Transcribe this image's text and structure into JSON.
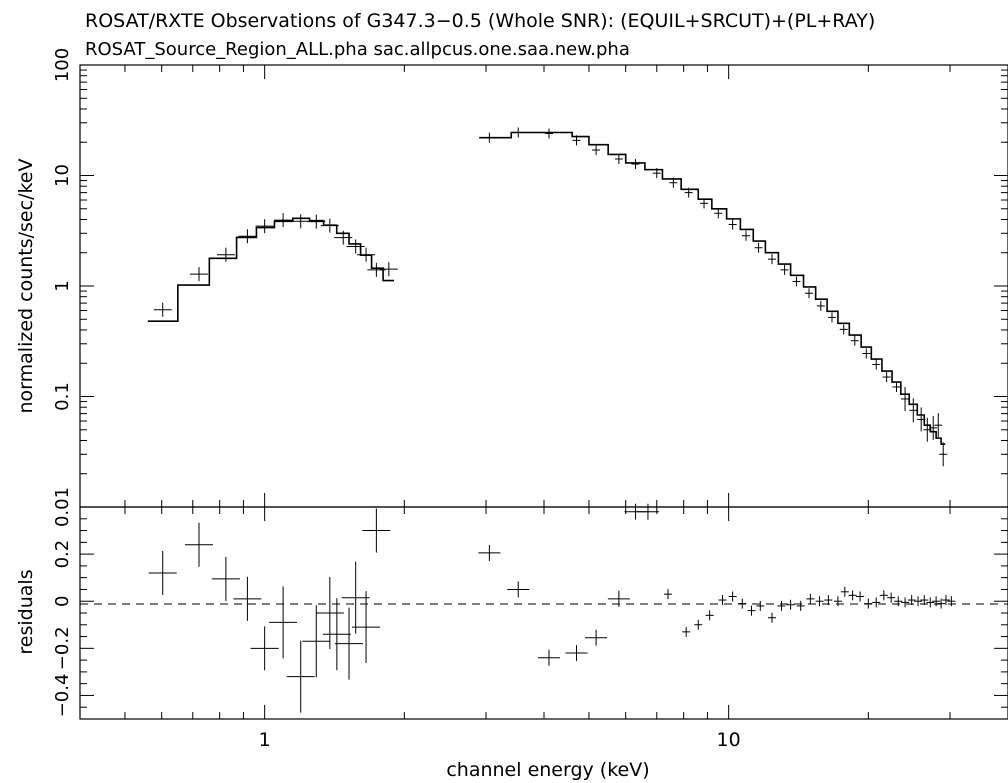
{
  "title": "ROSAT/RXTE Observations of G347.3−0.5 (Whole SNR): (EQUIL+SRCUT)+(PL+RAY)",
  "subtitle": "ROSAT_Source_Region_ALL.pha sac.allpcus.one.saa.new.pha",
  "colors": {
    "ink": "#000000",
    "background": "#ffffff"
  },
  "chart_data": [
    {
      "type": "scatter",
      "panel": "spectrum",
      "xlabel": "channel energy (keV)",
      "ylabel": "normalized counts/sec/keV",
      "xscale": "log",
      "yscale": "log",
      "xlim": [
        0.4,
        40
      ],
      "ylim": [
        0.01,
        100
      ],
      "yticks": [
        0.01,
        0.1,
        1,
        10,
        100
      ],
      "yticklabels": [
        "0.01",
        "0.1",
        "1",
        "10",
        "100"
      ],
      "series": [
        {
          "data": [
            [
              0.603,
              0.61
            ],
            [
              0.722,
              1.28
            ],
            [
              0.825,
              1.92
            ],
            [
              0.918,
              2.82
            ],
            [
              1.0,
              3.48
            ],
            [
              1.096,
              3.95
            ],
            [
              1.196,
              3.85
            ],
            [
              1.292,
              3.82
            ],
            [
              1.382,
              3.52
            ],
            [
              1.477,
              2.74
            ],
            [
              1.571,
              2.28
            ],
            [
              1.654,
              1.92
            ],
            [
              1.741,
              1.4
            ],
            [
              1.852,
              1.42
            ],
            [
              3.05,
              22.0
            ],
            [
              3.52,
              24.5
            ],
            [
              4.1,
              24.0
            ],
            [
              4.7,
              20.8
            ],
            [
              5.18,
              17.0
            ],
            [
              5.8,
              14.1
            ],
            [
              6.3,
              12.7
            ],
            [
              7.0,
              10.5
            ],
            [
              7.6,
              8.6
            ],
            [
              8.2,
              7.0
            ],
            [
              8.85,
              5.6
            ],
            [
              9.5,
              4.55
            ],
            [
              10.2,
              3.6
            ],
            [
              10.9,
              2.85
            ],
            [
              11.6,
              2.22
            ],
            [
              12.4,
              1.75
            ],
            [
              13.2,
              1.4
            ],
            [
              14.0,
              1.1
            ],
            [
              14.9,
              0.86
            ],
            [
              15.8,
              0.66
            ],
            [
              16.7,
              0.52
            ],
            [
              17.7,
              0.405
            ],
            [
              18.7,
              0.32
            ],
            [
              19.8,
              0.245
            ],
            [
              20.8,
              0.195
            ],
            [
              21.9,
              0.15
            ],
            [
              23.0,
              0.122
            ],
            [
              24.0,
              0.095
            ],
            [
              25.0,
              0.075
            ],
            [
              26.0,
              0.062
            ],
            [
              26.8,
              0.05
            ],
            [
              27.6,
              0.052
            ],
            [
              28.3,
              0.055
            ],
            [
              29.0,
              0.03
            ]
          ]
        },
        {
          "step": [
            [
              0.56,
              0.48
            ],
            [
              0.65,
              1.02
            ],
            [
              0.76,
              1.78
            ],
            [
              0.87,
              2.75
            ],
            [
              0.96,
              3.38
            ],
            [
              1.05,
              3.85
            ],
            [
              1.15,
              4.1
            ],
            [
              1.25,
              3.9
            ],
            [
              1.34,
              3.55
            ],
            [
              1.43,
              3.0
            ],
            [
              1.52,
              2.4
            ],
            [
              1.61,
              1.9
            ],
            [
              1.7,
              1.45
            ],
            [
              1.8,
              1.12
            ],
            [
              1.9,
              1.12
            ],
            [
              2.9,
              22.0
            ],
            [
              3.4,
              24.5
            ],
            [
              4.6,
              22.5
            ],
            [
              5.0,
              19.0
            ],
            [
              5.5,
              15.5
            ],
            [
              6.0,
              13.0
            ],
            [
              6.6,
              11.3
            ],
            [
              7.2,
              9.3
            ],
            [
              7.9,
              7.5
            ],
            [
              8.6,
              6.1
            ],
            [
              9.2,
              5.0
            ],
            [
              9.9,
              4.05
            ],
            [
              10.6,
              3.25
            ],
            [
              11.3,
              2.55
            ],
            [
              12.0,
              2.0
            ],
            [
              12.8,
              1.58
            ],
            [
              13.6,
              1.25
            ],
            [
              14.5,
              0.98
            ],
            [
              15.4,
              0.76
            ],
            [
              16.3,
              0.59
            ],
            [
              17.2,
              0.46
            ],
            [
              18.2,
              0.36
            ],
            [
              19.3,
              0.28
            ],
            [
              20.3,
              0.218
            ],
            [
              21.4,
              0.17
            ],
            [
              22.5,
              0.135
            ],
            [
              23.5,
              0.105
            ],
            [
              24.5,
              0.085
            ],
            [
              25.5,
              0.068
            ],
            [
              26.4,
              0.055
            ],
            [
              27.2,
              0.048
            ],
            [
              28.0,
              0.042
            ],
            [
              28.7,
              0.037
            ],
            [
              29.3,
              0.037
            ]
          ]
        }
      ]
    },
    {
      "type": "scatter",
      "panel": "residuals",
      "xlabel": "channel energy (keV)",
      "ylabel": "residuals",
      "xscale": "log",
      "xlim": [
        0.4,
        40
      ],
      "ylim": [
        -0.5,
        0.4
      ],
      "yticks": [
        -0.4,
        -0.2,
        0,
        0.2
      ],
      "yticklabels": [
        "−0.4",
        "−0.2",
        "0",
        "0.2"
      ],
      "xticks": [
        1,
        10
      ],
      "xticklabels": [
        "1",
        "10"
      ],
      "zero_line": 0,
      "series": [
        {
          "data": [
            [
              0.603,
              0.12
            ],
            [
              0.722,
              0.24
            ],
            [
              0.825,
              0.095
            ],
            [
              0.918,
              0.01
            ],
            [
              1.0,
              -0.2
            ],
            [
              1.096,
              -0.09
            ],
            [
              1.196,
              -0.32
            ],
            [
              1.292,
              -0.17
            ],
            [
              1.382,
              -0.05
            ],
            [
              1.431,
              -0.14
            ],
            [
              1.52,
              -0.18
            ],
            [
              1.571,
              0.015
            ],
            [
              1.654,
              -0.11
            ],
            [
              1.741,
              0.3
            ],
            [
              3.05,
              0.205
            ],
            [
              3.52,
              0.05
            ],
            [
              4.1,
              -0.24
            ],
            [
              4.7,
              -0.22
            ],
            [
              5.18,
              -0.155
            ],
            [
              5.8,
              0.01
            ],
            [
              6.3,
              0.38
            ],
            [
              6.7,
              0.38
            ],
            [
              7.4,
              0.03
            ],
            [
              8.1,
              -0.13
            ],
            [
              8.6,
              -0.1
            ],
            [
              9.1,
              -0.06
            ],
            [
              9.7,
              0.005
            ],
            [
              10.2,
              0.02
            ],
            [
              10.7,
              -0.01
            ],
            [
              11.2,
              -0.04
            ],
            [
              11.7,
              -0.02
            ],
            [
              12.4,
              -0.07
            ],
            [
              13.0,
              -0.02
            ],
            [
              13.6,
              -0.015
            ],
            [
              14.3,
              -0.02
            ],
            [
              15.0,
              0.01
            ],
            [
              15.7,
              0.0
            ],
            [
              16.4,
              0.005
            ],
            [
              17.2,
              0.0
            ],
            [
              17.8,
              0.04
            ],
            [
              18.5,
              0.025
            ],
            [
              19.2,
              0.02
            ],
            [
              20.0,
              -0.01
            ],
            [
              20.8,
              -0.005
            ],
            [
              21.6,
              0.025
            ],
            [
              22.4,
              0.015
            ],
            [
              23.2,
              0.0
            ],
            [
              24.0,
              -0.005
            ],
            [
              24.8,
              0.005
            ],
            [
              25.6,
              0.0
            ],
            [
              26.4,
              0.005
            ],
            [
              27.2,
              -0.005
            ],
            [
              28.0,
              0.0
            ],
            [
              28.7,
              -0.01
            ],
            [
              29.4,
              0.005
            ],
            [
              30.2,
              0.0
            ]
          ]
        }
      ]
    }
  ]
}
